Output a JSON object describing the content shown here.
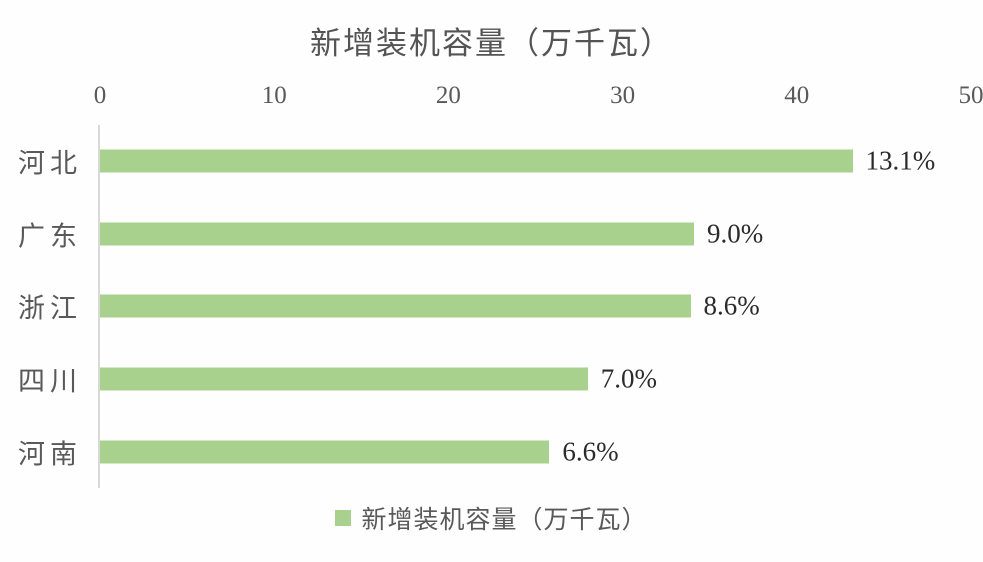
{
  "chart_data": {
    "type": "bar",
    "orientation": "horizontal",
    "title": "新增装机容量（万千瓦）",
    "categories": [
      "河北",
      "广东",
      "浙江",
      "四川",
      "河南"
    ],
    "values": [
      43.2,
      34.1,
      33.9,
      28.0,
      25.8
    ],
    "value_labels": [
      "13.1%",
      "9.0%",
      "8.6%",
      "7.0%",
      "6.6%"
    ],
    "xlim": [
      0,
      50
    ],
    "x_ticks": [
      "0",
      "10",
      "20",
      "30",
      "40",
      "50"
    ],
    "x_axis_position": "top",
    "grid": false,
    "legend": {
      "label": "新增装机容量（万千瓦）",
      "position": "bottom"
    }
  },
  "colors": {
    "bar": "#a9d18e",
    "title_text": "#545454",
    "tick_text": "#595959",
    "category_text": "#595959",
    "value_text": "#2b2b2b",
    "axis_line": "#d9d9d9",
    "background": "#fefefe"
  }
}
